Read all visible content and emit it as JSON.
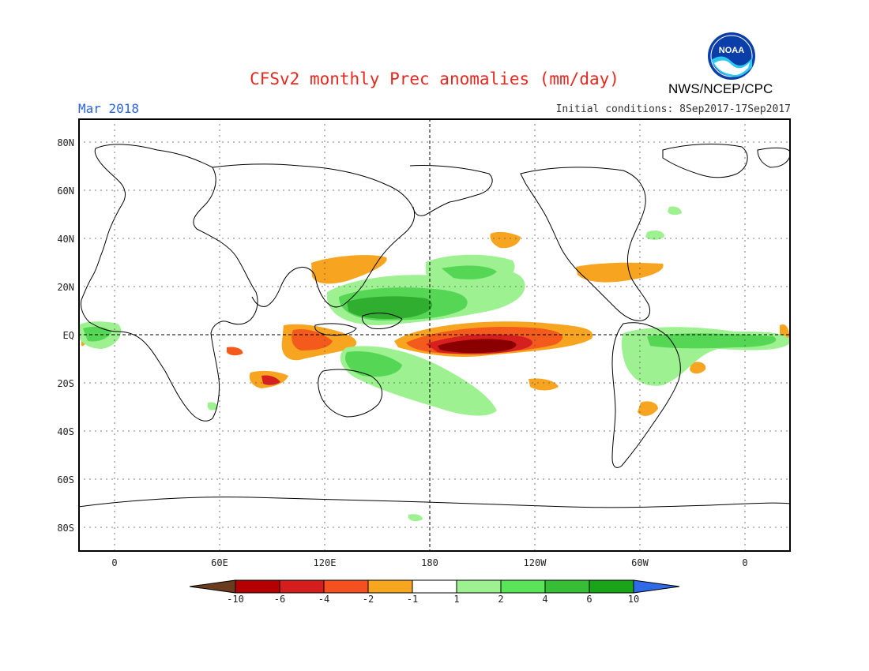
{
  "header": {
    "title": "CFSv2 monthly Prec anomalies (mm/day)",
    "agency": "NWS/NCEP/CPC",
    "logo_text": "NOAA",
    "month": "Mar 2018",
    "initial_conditions": "Initial conditions: 8Sep2017-17Sep2017"
  },
  "map": {
    "lat_labels": [
      "80N",
      "60N",
      "40N",
      "20N",
      "EQ",
      "20S",
      "40S",
      "60S",
      "80S"
    ],
    "lon_labels": [
      "0",
      "60E",
      "120E",
      "180",
      "120W",
      "60W",
      "0"
    ],
    "colors": {
      "dry_extreme": "#8a0000",
      "dry_strong": "#d62020",
      "dry_moderate": "#f45a1c",
      "dry_weak": "#f7a520",
      "wet_weak": "#9df190",
      "wet_moderate": "#55d655",
      "wet_strong": "#2fae2f",
      "coast": "#000000"
    }
  },
  "colorbar": {
    "labels": [
      "-10",
      "-6",
      "-4",
      "-2",
      "-1",
      "1",
      "2",
      "4",
      "6",
      "10"
    ],
    "colors": [
      "#6b3b1e",
      "#b40000",
      "#d41e1e",
      "#f55020",
      "#f7a71f",
      "#ffffff",
      "#9df190",
      "#5ae45a",
      "#36bf36",
      "#19a419",
      "#2f6be8"
    ]
  }
}
